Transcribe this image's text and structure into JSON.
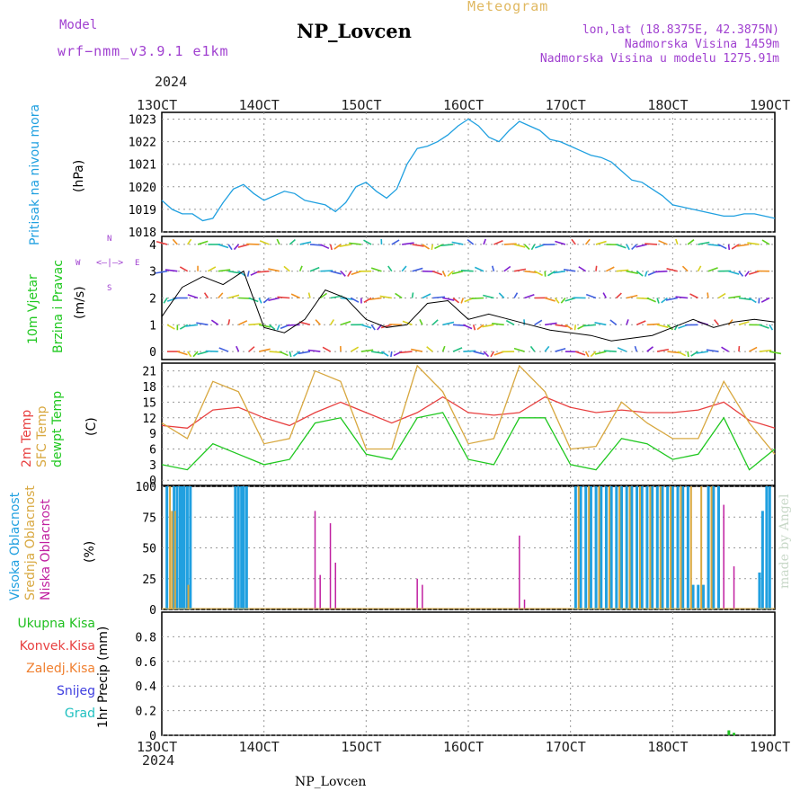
{
  "header": {
    "title": "NP_Lovcen",
    "model_label": "Model",
    "model_name": "wrf−nmm_v3.9.1 e1km",
    "meteogram": "Meteogram",
    "lonlat": "lon,lat (18.8375E, 42.3875N)",
    "elevation": "Nadmorska Visina 1459m",
    "model_elevation": "Nadmorska Visina u modelu 1275.91m"
  },
  "footer": {
    "station": "NP_Lovcen",
    "credit": "made by Angel"
  },
  "axis_time": {
    "year": "2024",
    "ticks": [
      "13OCT",
      "14OCT",
      "15OCT",
      "16OCT",
      "17OCT",
      "18OCT",
      "19OCT"
    ]
  },
  "panels": {
    "pressure": {
      "ylabel": "Pritisak na nivou mora",
      "unit": "(hPa)",
      "ticks": [
        "1018",
        "1019",
        "1020",
        "1021",
        "1022",
        "1023"
      ]
    },
    "wind": {
      "ylabel1": "10m Vjetar",
      "ylabel2": "Brzina i Pravac",
      "unit": "(m/s)",
      "ticks": [
        "0",
        "1",
        "2",
        "3",
        "4"
      ],
      "compass": {
        "n": "N",
        "w": "W",
        "e": "E",
        "s": "S"
      }
    },
    "temp": {
      "ylabel1": "2m Temp",
      "ylabel2": "SFC Temp",
      "ylabel3": "dewpt Temp",
      "unit": "(C)",
      "ticks": [
        "0",
        "3",
        "6",
        "9",
        "12",
        "15",
        "18",
        "21"
      ]
    },
    "cloud": {
      "ylabel1": "Visoka Oblacnost",
      "ylabel2": "Srednja Oblacnost",
      "ylabel3": "Niska Oblacnost",
      "unit": "(%)",
      "ticks": [
        "0",
        "25",
        "50",
        "75",
        "100"
      ]
    },
    "precip": {
      "ylabel": "1hr Precip (mm)",
      "ticks": [
        "0",
        "0.2",
        "0.4",
        "0.6",
        "0.8"
      ],
      "legend": [
        "Ukupna Kisa",
        "Konvek.Kisa",
        "Zaledj.Kisa",
        "Snijeg",
        "Grad"
      ]
    }
  },
  "colors": {
    "pressure": "#20a0e0",
    "temp2m": "#e84040",
    "sfc": "#d8a840",
    "dewpt": "#20c820",
    "wind_speed": "#000000",
    "wind_gust": "#e84040",
    "cloud_high": "#20a0e0",
    "cloud_mid": "#d8a840",
    "cloud_low": "#c020a0",
    "precip_total": "#20c020",
    "precip_conv": "#e84040",
    "precip_frz": "#f08030",
    "precip_snow": "#4040e0",
    "precip_grad": "#20c0c0",
    "label_purple": "#a040d0"
  },
  "chart_data": [
    {
      "type": "line",
      "name": "pressure",
      "ylim": [
        1018,
        1023.3
      ],
      "x": [
        0,
        0.1,
        0.2,
        0.3,
        0.4,
        0.5,
        0.6,
        0.7,
        0.8,
        0.9,
        1.0,
        1.1,
        1.2,
        1.3,
        1.4,
        1.5,
        1.6,
        1.7,
        1.8,
        1.9,
        2.0,
        2.1,
        2.2,
        2.3,
        2.4,
        2.5,
        2.6,
        2.7,
        2.8,
        2.9,
        3.0,
        3.1,
        3.2,
        3.3,
        3.4,
        3.5,
        3.6,
        3.7,
        3.8,
        3.9,
        4.0,
        4.1,
        4.2,
        4.3,
        4.4,
        4.5,
        4.6,
        4.7,
        4.8,
        4.9,
        5.0,
        5.1,
        5.2,
        5.3,
        5.4,
        5.5,
        5.6,
        5.7,
        5.8,
        5.9,
        6.0
      ],
      "values": [
        1019.4,
        1019.0,
        1018.8,
        1018.8,
        1018.5,
        1018.6,
        1019.3,
        1019.9,
        1020.1,
        1019.7,
        1019.4,
        1019.6,
        1019.8,
        1019.7,
        1019.4,
        1019.3,
        1019.2,
        1018.9,
        1019.3,
        1020.0,
        1020.2,
        1019.8,
        1019.5,
        1019.9,
        1021.0,
        1021.7,
        1021.8,
        1022.0,
        1022.3,
        1022.7,
        1023.0,
        1022.7,
        1022.2,
        1022.0,
        1022.5,
        1022.9,
        1022.7,
        1022.5,
        1022.1,
        1022.0,
        1021.8,
        1021.6,
        1021.4,
        1021.3,
        1021.1,
        1020.7,
        1020.3,
        1020.2,
        1019.9,
        1019.6,
        1019.2,
        1019.1,
        1019.0,
        1018.9,
        1018.8,
        1018.7,
        1018.7,
        1018.8,
        1018.8,
        1018.7,
        1018.6
      ]
    },
    {
      "type": "line",
      "name": "wind",
      "ylim": [
        -0.3,
        4.3
      ],
      "x": [
        0,
        0.2,
        0.4,
        0.6,
        0.8,
        1.0,
        1.2,
        1.4,
        1.6,
        1.8,
        2.0,
        2.2,
        2.4,
        2.6,
        2.8,
        3.0,
        3.2,
        3.4,
        3.6,
        3.8,
        4.0,
        4.2,
        4.4,
        4.6,
        4.8,
        5.0,
        5.2,
        5.4,
        5.6,
        5.8,
        6.0
      ],
      "values": [
        1.3,
        2.4,
        2.8,
        2.5,
        3.0,
        0.9,
        0.7,
        1.2,
        2.3,
        2.0,
        1.2,
        0.9,
        1.0,
        1.8,
        1.9,
        1.2,
        1.4,
        1.2,
        1.0,
        0.8,
        0.7,
        0.6,
        0.4,
        0.5,
        0.6,
        0.9,
        1.2,
        0.9,
        1.1,
        1.2,
        1.1
      ]
    },
    {
      "type": "line",
      "name": "temperature",
      "ylim": [
        -1,
        22.5
      ],
      "x": [
        0,
        0.25,
        0.5,
        0.75,
        1.0,
        1.25,
        1.5,
        1.75,
        2.0,
        2.25,
        2.5,
        2.75,
        3.0,
        3.25,
        3.5,
        3.75,
        4.0,
        4.25,
        4.5,
        4.75,
        5.0,
        5.25,
        5.5,
        5.75,
        6.0
      ],
      "series": [
        {
          "name": "2m Temp",
          "values": [
            10.5,
            10.0,
            13.5,
            14.0,
            12.0,
            10.5,
            13.0,
            15.0,
            13.0,
            11.0,
            13.0,
            16.0,
            13.0,
            12.5,
            13.0,
            16.0,
            14.0,
            13.0,
            13.5,
            13.0,
            13.0,
            13.5,
            15.0,
            11.5,
            10.0
          ]
        },
        {
          "name": "SFC Temp",
          "values": [
            11.0,
            8.0,
            19.0,
            17.0,
            7.0,
            8.0,
            21.0,
            19.0,
            6.0,
            6.0,
            22.0,
            17.0,
            7.0,
            8.0,
            22.0,
            17.0,
            6.0,
            6.5,
            15.0,
            11.0,
            8.0,
            8.0,
            19.0,
            11.0,
            5.0
          ]
        },
        {
          "name": "dewpt Temp",
          "values": [
            3.0,
            2.0,
            7.0,
            5.0,
            3.0,
            4.0,
            11.0,
            12.0,
            5.0,
            4.0,
            12.0,
            13.0,
            4.0,
            3.0,
            12.0,
            12.0,
            3.0,
            2.0,
            8.0,
            7.0,
            4.0,
            5.0,
            12.0,
            2.0,
            6.0
          ]
        }
      ]
    },
    {
      "type": "bar",
      "name": "cloud",
      "ylim": [
        0,
        100
      ],
      "series": [
        {
          "name": "Visoka Oblacnost",
          "x": [
            0.05,
            0.12,
            0.15,
            0.18,
            0.2,
            0.22,
            0.25,
            0.28,
            0.72,
            0.75,
            0.78,
            0.8,
            0.83,
            4.05,
            4.1,
            4.15,
            4.2,
            4.25,
            4.3,
            4.35,
            4.4,
            4.45,
            4.5,
            4.55,
            4.6,
            4.65,
            4.7,
            4.75,
            4.8,
            4.85,
            4.9,
            4.95,
            5.0,
            5.05,
            5.1,
            5.15,
            5.2,
            5.25,
            5.3,
            5.35,
            5.4,
            5.45,
            5.85,
            5.88,
            5.92,
            5.95
          ],
          "values": [
            100,
            100,
            100,
            100,
            100,
            100,
            100,
            100,
            100,
            100,
            100,
            100,
            100,
            100,
            100,
            100,
            100,
            100,
            100,
            100,
            100,
            100,
            100,
            100,
            100,
            100,
            100,
            100,
            100,
            100,
            100,
            100,
            100,
            100,
            100,
            100,
            20,
            20,
            20,
            100,
            100,
            100,
            30,
            80,
            100,
            100
          ]
        },
        {
          "name": "Srednja Oblacnost",
          "x": [
            0.08,
            0.1,
            0.13,
            0.26,
            4.08,
            4.18,
            4.28,
            4.38,
            4.48,
            4.58,
            4.68,
            4.78,
            4.88,
            4.98,
            5.08,
            5.18,
            5.28,
            5.38
          ],
          "values": [
            100,
            80,
            80,
            20,
            100,
            100,
            100,
            100,
            100,
            100,
            100,
            100,
            100,
            100,
            100,
            100,
            100,
            100
          ]
        },
        {
          "name": "Niska Oblacnost",
          "x": [
            1.5,
            1.55,
            1.65,
            1.7,
            2.5,
            2.55,
            3.5,
            3.55,
            5.5,
            5.6
          ],
          "values": [
            80,
            28,
            70,
            38,
            25,
            20,
            60,
            8,
            85,
            35
          ]
        }
      ]
    },
    {
      "type": "bar",
      "name": "precip",
      "ylim": [
        0,
        1.0
      ],
      "series": [
        {
          "name": "Ukupna Kisa",
          "x": [
            5.55,
            5.6
          ],
          "values": [
            0.04,
            0.02
          ]
        }
      ]
    }
  ]
}
